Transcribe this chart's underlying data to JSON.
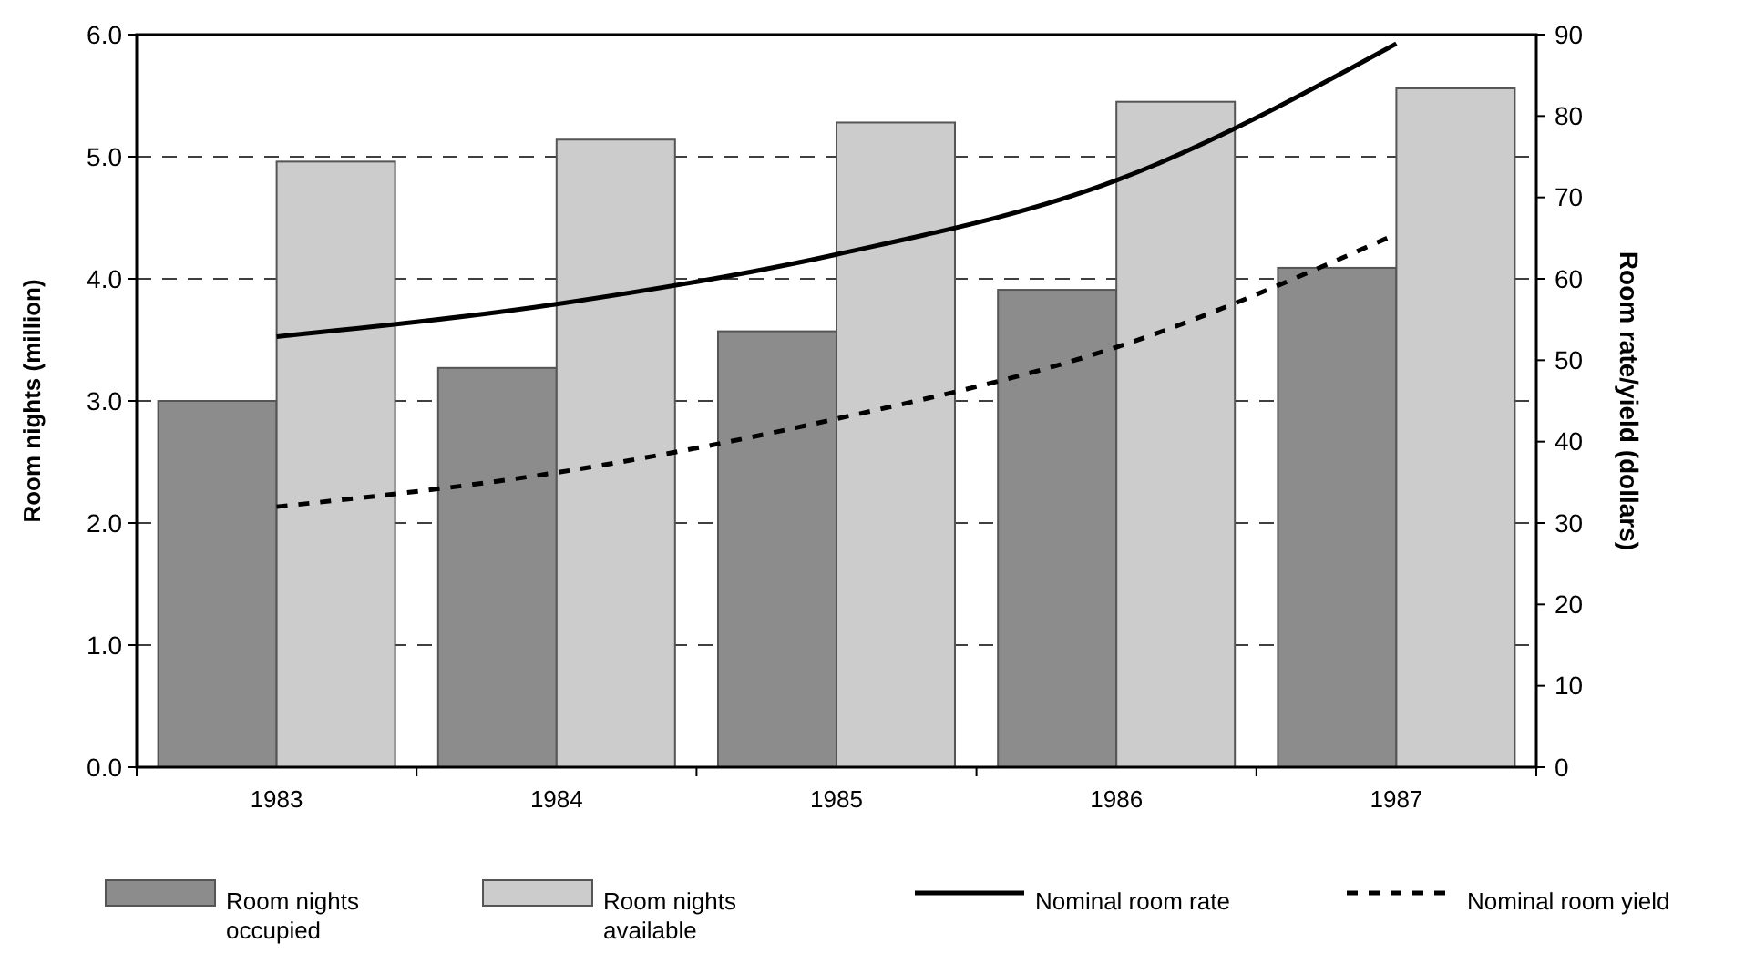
{
  "chart_data": {
    "type": "bar",
    "categories": [
      "1983",
      "1984",
      "1985",
      "1986",
      "1987"
    ],
    "ylabel": "Room nights (million)",
    "y2label": "Room rate/yield (dollars)",
    "ylim": [
      0,
      6
    ],
    "yticks": [
      {
        "value": 0,
        "label": "0.0"
      },
      {
        "value": 1,
        "label": "1.0"
      },
      {
        "value": 2,
        "label": "2.0"
      },
      {
        "value": 3,
        "label": "3.0"
      },
      {
        "value": 4,
        "label": "4.0"
      },
      {
        "value": 5,
        "label": "5.0"
      },
      {
        "value": 6,
        "label": "6.0"
      }
    ],
    "y2lim": [
      0,
      90
    ],
    "y2ticks": [
      0,
      10,
      20,
      30,
      40,
      50,
      60,
      70,
      80,
      90
    ],
    "grid": "y",
    "legend": "bottom",
    "series": [
      {
        "name": "Room nights occupied",
        "color": "#8c8c8c",
        "values": [
          3.0,
          3.27,
          3.57,
          3.91,
          4.09
        ]
      },
      {
        "name": "Room nights available",
        "color": "#cccccc",
        "values": [
          4.96,
          5.14,
          5.28,
          5.45,
          5.56
        ]
      },
      {
        "name": "Nominal room rate",
        "type": "line",
        "axis": "y2",
        "color": "#000000",
        "line_style": "solid",
        "values": [
          52.9,
          56.9,
          63.0,
          72.1,
          88.9
        ]
      },
      {
        "name": "Nominal room yield",
        "type": "line",
        "axis": "y2",
        "color": "#000000",
        "line_style": "dashed",
        "values": [
          32.0,
          36.2,
          42.8,
          51.6,
          65.5
        ]
      }
    ]
  }
}
